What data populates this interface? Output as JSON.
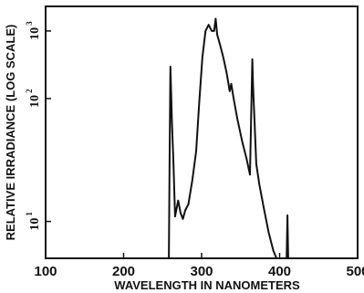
{
  "chart_data": {
    "type": "line",
    "title": "",
    "xlabel": "WAVELENGTH IN NANOMETERS",
    "ylabel": "RELATIVE IRRADIANCE (LOG SCALE)",
    "xlim": [
      100,
      500
    ],
    "ylim_log10": [
      0.2,
      2.25
    ],
    "y_scale": "log",
    "grid": false,
    "x_ticks": [
      {
        "value": 100,
        "label": "100"
      },
      {
        "value": 200,
        "label": "200"
      },
      {
        "value": 300,
        "label": "300"
      },
      {
        "value": 400,
        "label": "400"
      },
      {
        "value": 500,
        "label": "500"
      }
    ],
    "y_ticks": [
      {
        "log10": 0.5,
        "base": "10",
        "exp": "1"
      },
      {
        "log10": 1.5,
        "base": "10",
        "exp": "2"
      },
      {
        "log10": 2.05,
        "base": "10",
        "exp": "3"
      }
    ],
    "series": [
      {
        "segments": [
          [
            [
              258,
              0.2
            ],
            [
              259,
              1.0
            ],
            [
              260,
              1.76
            ],
            [
              262,
              1.3
            ],
            [
              264,
              0.96
            ],
            [
              266,
              0.54
            ],
            [
              270,
              0.67
            ],
            [
              273,
              0.57
            ],
            [
              276,
              0.52
            ],
            [
              279,
              0.59
            ],
            [
              283,
              0.64
            ],
            [
              288,
              0.83
            ],
            [
              293,
              1.07
            ],
            [
              297,
              1.47
            ],
            [
              301,
              1.84
            ],
            [
              305,
              2.05
            ],
            [
              309,
              2.1
            ],
            [
              313,
              2.05
            ],
            [
              316,
              2.05
            ],
            [
              318,
              2.15
            ],
            [
              320,
              2.02
            ],
            [
              324,
              1.93
            ],
            [
              328,
              1.83
            ],
            [
              332,
              1.71
            ],
            [
              336,
              1.56
            ],
            [
              338,
              1.62
            ],
            [
              341,
              1.5
            ],
            [
              346,
              1.33
            ],
            [
              352,
              1.15
            ],
            [
              358,
              1.0
            ],
            [
              362,
              0.88
            ],
            [
              365,
              1.82
            ],
            [
              366,
              1.6
            ],
            [
              368,
              1.3
            ],
            [
              370,
              0.97
            ],
            [
              374,
              0.8
            ],
            [
              380,
              0.6
            ],
            [
              386,
              0.41
            ],
            [
              392,
              0.26
            ],
            [
              396,
              0.2
            ]
          ],
          [
            [
              409,
              0.2
            ],
            [
              410,
              0.55
            ],
            [
              411,
              0.2
            ]
          ]
        ]
      }
    ]
  }
}
